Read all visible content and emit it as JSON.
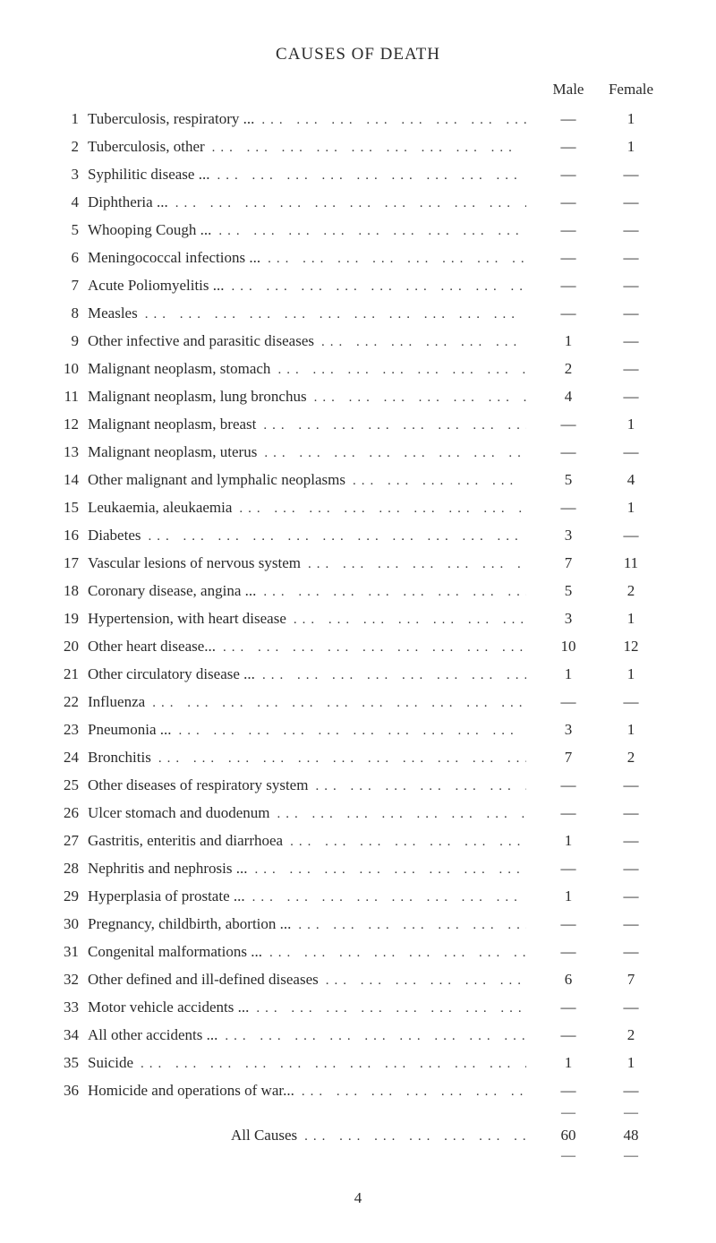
{
  "title": "CAUSES OF DEATH",
  "columns": {
    "male": "Male",
    "female": "Female"
  },
  "dash": "—",
  "page_number": "4",
  "dots": "...   ...   ...   ...   ...   ...   ...   ...   ...   ...   ...   ...",
  "all_causes_label": "All Causes",
  "all_causes": {
    "male": "60",
    "female": "48"
  },
  "rows": [
    {
      "n": "1",
      "label": "Tuberculosis, respiratory ...",
      "male": "—",
      "female": "1"
    },
    {
      "n": "2",
      "label": "Tuberculosis, other",
      "male": "—",
      "female": "1"
    },
    {
      "n": "3",
      "label": "Syphilitic disease   ...",
      "male": "—",
      "female": "—"
    },
    {
      "n": "4",
      "label": "Diphtheria   ...",
      "male": "—",
      "female": "—"
    },
    {
      "n": "5",
      "label": "Whooping Cough   ...",
      "male": "—",
      "female": "—"
    },
    {
      "n": "6",
      "label": "Meningococcal infections ...",
      "male": "—",
      "female": "—"
    },
    {
      "n": "7",
      "label": "Acute Poliomyelitis ...",
      "male": "—",
      "female": "—"
    },
    {
      "n": "8",
      "label": "Measles",
      "male": "—",
      "female": "—"
    },
    {
      "n": "9",
      "label": "Other infective and parasitic diseases",
      "male": "1",
      "female": "—"
    },
    {
      "n": "10",
      "label": "Malignant neoplasm, stomach",
      "male": "2",
      "female": "—"
    },
    {
      "n": "11",
      "label": "Malignant neoplasm, lung bronchus",
      "male": "4",
      "female": "—"
    },
    {
      "n": "12",
      "label": "Malignant neoplasm, breast",
      "male": "—",
      "female": "1"
    },
    {
      "n": "13",
      "label": "Malignant neoplasm, uterus",
      "male": "—",
      "female": "—"
    },
    {
      "n": "14",
      "label": "Other malignant and lymphalic neoplasms",
      "male": "5",
      "female": "4"
    },
    {
      "n": "15",
      "label": "Leukaemia, aleukaemia",
      "male": "—",
      "female": "1"
    },
    {
      "n": "16",
      "label": "Diabetes",
      "male": "3",
      "female": "—"
    },
    {
      "n": "17",
      "label": "Vascular lesions of nervous system",
      "male": "7",
      "female": "11"
    },
    {
      "n": "18",
      "label": "Coronary disease, angina ...",
      "male": "5",
      "female": "2"
    },
    {
      "n": "19",
      "label": "Hypertension, with heart disease",
      "male": "3",
      "female": "1"
    },
    {
      "n": "20",
      "label": "Other heart disease...",
      "male": "10",
      "female": "12"
    },
    {
      "n": "21",
      "label": "Other circulatory disease ...",
      "male": "1",
      "female": "1"
    },
    {
      "n": "22",
      "label": "Influenza",
      "male": "—",
      "female": "—"
    },
    {
      "n": "23",
      "label": "Pneumonia   ...",
      "male": "3",
      "female": "1"
    },
    {
      "n": "24",
      "label": "Bronchitis",
      "male": "7",
      "female": "2"
    },
    {
      "n": "25",
      "label": "Other diseases of respiratory system",
      "male": "—",
      "female": "—"
    },
    {
      "n": "26",
      "label": "Ulcer stomach and duodenum",
      "male": "—",
      "female": "—"
    },
    {
      "n": "27",
      "label": "Gastritis, enteritis and diarrhoea",
      "male": "1",
      "female": "—"
    },
    {
      "n": "28",
      "label": "Nephritis and nephrosis   ...",
      "male": "—",
      "female": "—"
    },
    {
      "n": "29",
      "label": "Hyperplasia of prostate   ...",
      "male": "1",
      "female": "—"
    },
    {
      "n": "30",
      "label": "Pregnancy, childbirth, abortion   ...",
      "male": "—",
      "female": "—"
    },
    {
      "n": "31",
      "label": "Congenital malformations ...",
      "male": "—",
      "female": "—"
    },
    {
      "n": "32",
      "label": "Other defined and ill-defined diseases",
      "male": "6",
      "female": "7"
    },
    {
      "n": "33",
      "label": "Motor vehicle accidents   ...",
      "male": "—",
      "female": "—"
    },
    {
      "n": "34",
      "label": "All other accidents ...",
      "male": "—",
      "female": "2"
    },
    {
      "n": "35",
      "label": "Suicide",
      "male": "1",
      "female": "1"
    },
    {
      "n": "36",
      "label": "Homicide and operations of war...",
      "male": "—",
      "female": "—"
    }
  ]
}
